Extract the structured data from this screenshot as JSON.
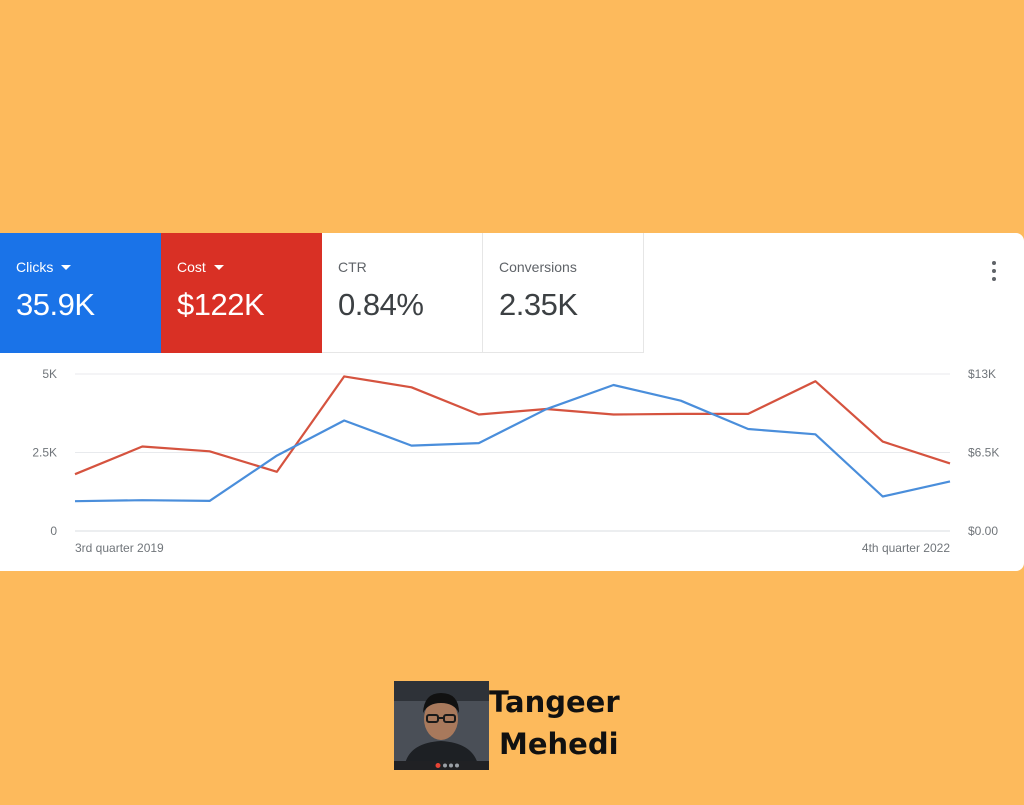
{
  "metrics": [
    {
      "label": "Clicks",
      "value": "35.9K",
      "color": "#1A73E8",
      "selected": true
    },
    {
      "label": "Cost",
      "value": "$122K",
      "color": "#D93025",
      "selected": true
    },
    {
      "label": "CTR",
      "value": "0.84%",
      "selected": false
    },
    {
      "label": "Conversions",
      "value": "2.35K",
      "selected": false
    }
  ],
  "chart_data": {
    "type": "line",
    "x_start_label": "3rd quarter 2019",
    "x_end_label": "4th quarter 2022",
    "y_left_ticks": [
      "0",
      "2.5K",
      "5K"
    ],
    "y_right_ticks": [
      "$0.00",
      "$6.5K",
      "$13K"
    ],
    "y_left_range": [
      0,
      5000
    ],
    "y_right_range": [
      0,
      13000
    ],
    "grid": true,
    "series": [
      {
        "name": "Clicks",
        "axis": "left",
        "color": "#4A8EDB",
        "values": [
          950,
          980,
          960,
          2400,
          3520,
          2720,
          2800,
          3880,
          4650,
          4150,
          3250,
          3080,
          1100,
          1580
        ]
      },
      {
        "name": "Cost",
        "axis": "right",
        "color": "#D5533F",
        "values": [
          4700,
          7000,
          6600,
          4900,
          12800,
          11900,
          9650,
          10100,
          9650,
          9700,
          9700,
          12400,
          7400,
          5600
        ]
      }
    ]
  },
  "presenter": {
    "first_name": "Tangeer",
    "last_name": "Mehedi"
  }
}
